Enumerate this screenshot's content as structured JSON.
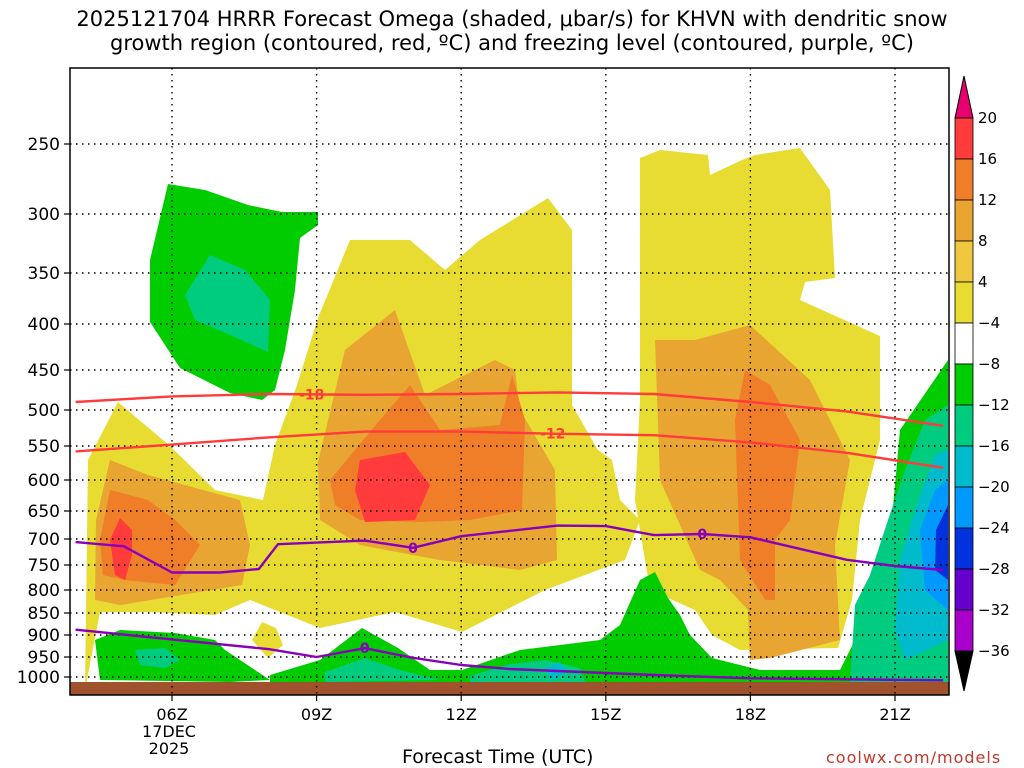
{
  "title_line1": "2025121704 HRRR Forecast Omega (shaded, μbar/s) for KHVN with dendritic snow",
  "title_line2": "growth region (contoured, red, ºC) and freezing level (contoured, purple, ºC)",
  "xlabel": "Forecast Time (UTC)",
  "credit": "coolwx.com/models",
  "chart_data": {
    "type": "heatmap",
    "title": "2025121704 HRRR Forecast Omega (shaded, μbar/s) for KHVN with dendritic snow growth region (contoured, red, ºC) and freezing level (contoured, purple, ºC)",
    "xlabel": "Forecast Time (UTC)",
    "ylabel": "",
    "y_axis": "pressure (hPa), inverted",
    "ylim": [
      1020,
      200
    ],
    "y_ticks": [
      250,
      300,
      350,
      400,
      450,
      500,
      550,
      600,
      650,
      700,
      750,
      800,
      850,
      900,
      950,
      1000
    ],
    "x_ticks": [
      {
        "hour": 6,
        "label": "06Z",
        "sub1": "17DEC",
        "sub2": "2025"
      },
      {
        "hour": 9,
        "label": "09Z"
      },
      {
        "hour": 12,
        "label": "12Z"
      },
      {
        "hour": 15,
        "label": "15Z"
      },
      {
        "hour": 18,
        "label": "18Z"
      },
      {
        "hour": 21,
        "label": "21Z"
      }
    ],
    "xlim": [
      4,
      22
    ],
    "grid": true,
    "colorbar": {
      "ticks": [
        "20",
        "16",
        "12",
        "8",
        "4",
        "−4",
        "−8",
        "−12",
        "−16",
        "−20",
        "−24",
        "−28",
        "−32",
        "−36"
      ],
      "colors": [
        "#ff3b3b",
        "#f07d28",
        "#e8a532",
        "#f0c840",
        "#e8dc32",
        "#ffffff",
        "#00cc00",
        "#00cc80",
        "#00bbcc",
        "#0099ff",
        "#0033dd",
        "#6600cc",
        "#aa00cc",
        "#a0a0a0"
      ],
      "top_arrow_color": "#e8006e",
      "bottom_arrow_color": "#000000"
    },
    "contours": [
      {
        "label": "-18",
        "color": "#ff3b3b",
        "points": [
          [
            4,
            490
          ],
          [
            6,
            483
          ],
          [
            8,
            480
          ],
          [
            10,
            481
          ],
          [
            12,
            480
          ],
          [
            14,
            478
          ],
          [
            16,
            480
          ],
          [
            18,
            490
          ],
          [
            20,
            502
          ],
          [
            22,
            522
          ]
        ]
      },
      {
        "label": "-12",
        "color": "#ff3b3b",
        "points": [
          [
            4,
            558
          ],
          [
            6,
            548
          ],
          [
            8,
            538
          ],
          [
            10,
            530
          ],
          [
            12,
            530
          ],
          [
            14,
            533
          ],
          [
            16,
            535
          ],
          [
            18,
            545
          ],
          [
            20,
            560
          ],
          [
            22,
            582
          ]
        ]
      },
      {
        "label": "0",
        "color": "#8800bb",
        "points": [
          [
            4,
            706
          ],
          [
            5,
            714
          ],
          [
            6,
            765
          ],
          [
            7,
            765
          ],
          [
            7.8,
            758
          ],
          [
            8.2,
            710
          ],
          [
            10,
            703
          ],
          [
            11,
            717
          ],
          [
            12,
            695
          ],
          [
            14,
            676
          ],
          [
            15,
            677
          ],
          [
            16,
            693
          ],
          [
            17,
            691
          ],
          [
            18,
            697
          ],
          [
            20,
            740
          ],
          [
            21,
            752
          ],
          [
            22,
            760
          ]
        ]
      },
      {
        "label": "0",
        "color": "#8800bb",
        "points": [
          [
            4,
            888
          ],
          [
            6,
            910
          ],
          [
            8,
            932
          ],
          [
            9,
            950
          ],
          [
            10,
            930
          ],
          [
            11,
            952
          ],
          [
            12,
            970
          ],
          [
            13,
            980
          ],
          [
            14,
            985
          ],
          [
            16,
            995
          ],
          [
            18,
            1002
          ],
          [
            22,
            1005
          ]
        ]
      }
    ]
  }
}
